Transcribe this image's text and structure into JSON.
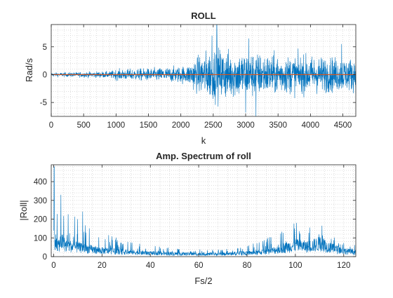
{
  "colors": {
    "signal": "#0072BD",
    "reference": "#D95319",
    "axes": "#262626",
    "grid": "#c8c8c8",
    "background": "#ffffff"
  },
  "chart_data": [
    {
      "type": "line",
      "title": "ROLL",
      "xlabel": "k",
      "ylabel": "Rad/s",
      "xlim": [
        0,
        4700
      ],
      "ylim": [
        -7.5,
        9
      ],
      "xticks": [
        0,
        500,
        1000,
        1500,
        2000,
        2500,
        3000,
        3500,
        4000,
        4500
      ],
      "yticks": [
        -5,
        0,
        5
      ],
      "grid": "minor dotted",
      "series": [
        {
          "role": "signal",
          "color": "#0072BD",
          "envelope": {
            "k": [
              0,
              300,
              600,
              900,
              1000,
              1300,
              1600,
              1900,
              2100,
              2200,
              2400,
              2550,
              2800,
              3000,
              3300,
              3600,
              3900,
              4200,
              4500,
              4700
            ],
            "amplitude": [
              0.3,
              0.35,
              0.45,
              0.5,
              0.8,
              0.9,
              1.0,
              1.2,
              1.4,
              2.4,
              3.6,
              4.2,
              3.6,
              3.6,
              3.2,
              2.9,
              2.9,
              2.8,
              2.6,
              2.5
            ]
          },
          "spikes": [
            {
              "k": 2555,
              "value": 9.0
            },
            {
              "k": 2480,
              "value": 7.0
            },
            {
              "k": 3000,
              "value": -6.8
            },
            {
              "k": 3160,
              "value": -7.5
            },
            {
              "k": 3050,
              "value": 6.5
            },
            {
              "k": 4480,
              "value": 5.5
            }
          ]
        },
        {
          "role": "reference",
          "color": "#D95319",
          "constant": 0,
          "x": [
            0,
            4700
          ]
        }
      ]
    },
    {
      "type": "line",
      "title": "Amp. Spectrum of roll",
      "xlabel": "Fs/2",
      "ylabel": "|Roll|",
      "xlim": [
        -1,
        125
      ],
      "ylim": [
        0,
        490
      ],
      "xticks": [
        0,
        20,
        40,
        60,
        80,
        100,
        120
      ],
      "yticks": [
        0,
        100,
        200,
        300,
        400
      ],
      "grid": "minor dotted",
      "series": [
        {
          "role": "spectrum",
          "color": "#0072BD",
          "envelope": {
            "f": [
              0,
              1,
              2,
              3,
              5,
              8,
              12,
              16,
              20,
              25,
              30,
              40,
              50,
              60,
              70,
              80,
              85,
              90,
              95,
              100,
              105,
              110,
              115,
              120,
              125
            ],
            "baseline": [
              150,
              100,
              75,
              110,
              80,
              70,
              60,
              50,
              42,
              38,
              32,
              25,
              20,
              18,
              18,
              25,
              30,
              40,
              60,
              80,
              70,
              90,
              60,
              40,
              30
            ],
            "peak": [
              480,
              300,
              200,
              330,
              240,
              220,
              240,
              160,
              120,
              110,
              90,
              60,
              45,
              40,
              40,
              60,
              80,
              110,
              150,
              180,
              160,
              165,
              110,
              80,
              60
            ]
          },
          "peaks": [
            {
              "f": 0.2,
              "value": 480
            },
            {
              "f": 3.0,
              "value": 330
            },
            {
              "f": 12.0,
              "value": 240
            },
            {
              "f": 100.5,
              "value": 180
            },
            {
              "f": 111.0,
              "value": 165
            }
          ]
        }
      ]
    }
  ]
}
